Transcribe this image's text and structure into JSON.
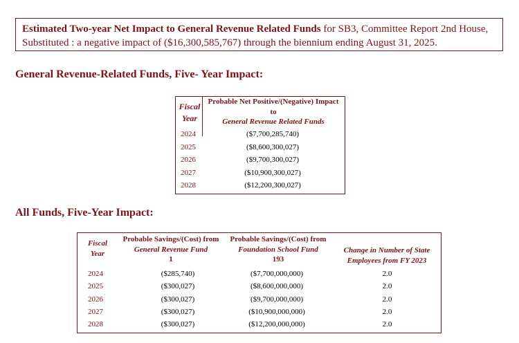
{
  "summary": {
    "bold_text": "Estimated Two-year Net Impact to General Revenue Related Funds",
    "rest_text": " for SB3, Committee Report 2nd House, Substituted : a negative impact of ($16,300,585,767) through the biennium ending August 31, 2025."
  },
  "gr_section": {
    "title": "General Revenue-Related Funds, Five- Year Impact:",
    "fy_header_line1": "Fiscal",
    "fy_header_line2": "Year",
    "impact_header_line1": "Probable Net Positive/(Negative) Impact",
    "impact_header_line2": "to",
    "impact_header_line3": "General Revenue Related Funds",
    "rows": [
      {
        "year": "2024",
        "value": "($7,700,285,740)"
      },
      {
        "year": "2025",
        "value": "($8,600,300,027)"
      },
      {
        "year": "2026",
        "value": "($9,700,300,027)"
      },
      {
        "year": "2027",
        "value": "($10,900,300,027)"
      },
      {
        "year": "2028",
        "value": "($12,200,300,027)"
      }
    ]
  },
  "af_section": {
    "title": "All Funds, Five-Year Impact:",
    "fy_header_line1": "Fiscal",
    "fy_header_line2": "Year",
    "col1_line1": "Probable Savings/(Cost) from",
    "col1_line2": "General Revenue Fund",
    "col1_line3": "1",
    "col2_line1": "Probable Savings/(Cost) from",
    "col2_line2": "Foundation School Fund",
    "col2_line3": "193",
    "col3_line1": "Change in Number of State",
    "col3_line2": "Employees from FY 2023",
    "rows": [
      {
        "year": "2024",
        "c1": "($285,740)",
        "c2": "($7,700,000,000)",
        "c3": "2.0"
      },
      {
        "year": "2025",
        "c1": "($300,027)",
        "c2": "($8,600,000,000)",
        "c3": "2.0"
      },
      {
        "year": "2026",
        "c1": "($300,027)",
        "c2": "($9,700,000,000)",
        "c3": "2.0"
      },
      {
        "year": "2027",
        "c1": "($300,027)",
        "c2": "($10,900,000,000)",
        "c3": "2.0"
      },
      {
        "year": "2028",
        "c1": "($300,027)",
        "c2": "($12,200,000,000)",
        "c3": "2.0"
      }
    ]
  }
}
